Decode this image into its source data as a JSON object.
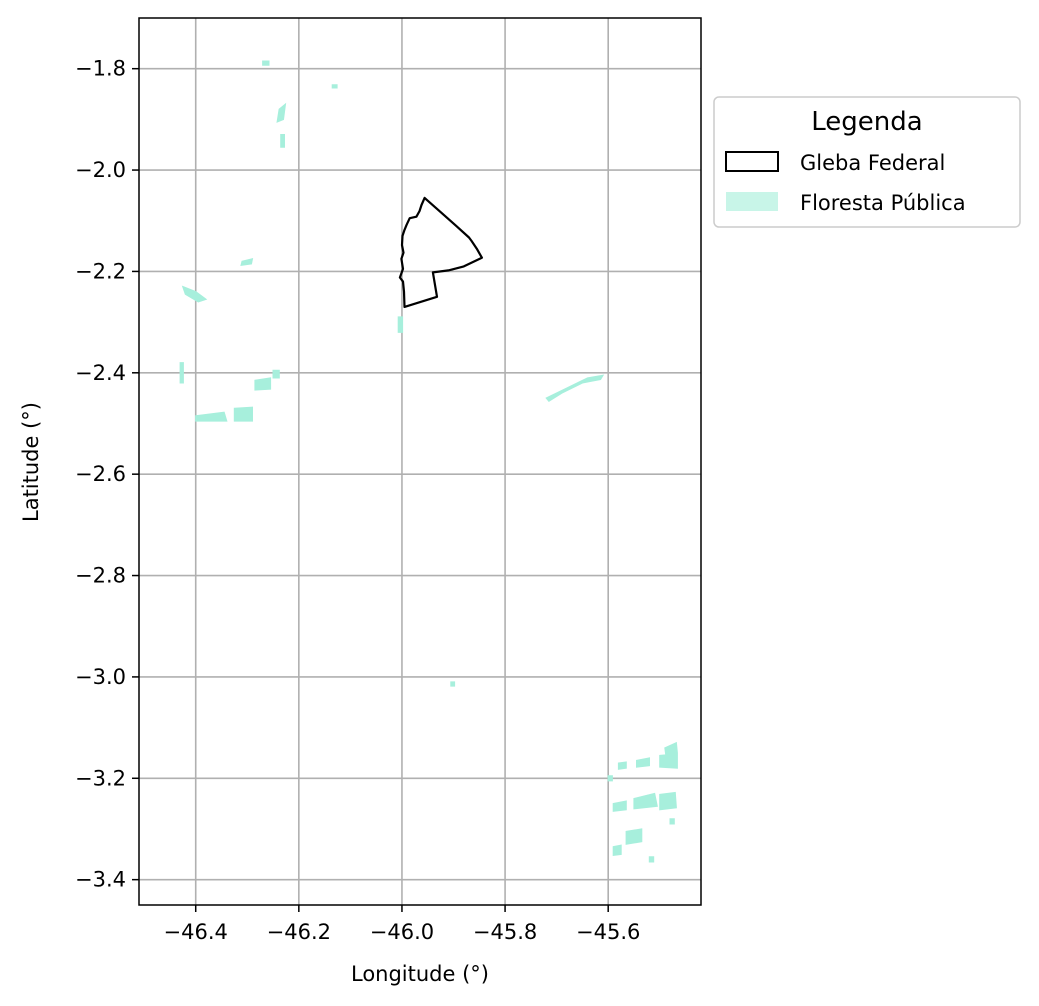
{
  "chart_data": {
    "type": "map",
    "xlabel": "Longitude (°)",
    "ylabel": "Latitude (°)",
    "xlim": [
      -46.51,
      -45.42
    ],
    "ylim": [
      -3.45,
      -1.7
    ],
    "xticks": [
      -46.4,
      -46.2,
      -46.0,
      -45.8,
      -45.6
    ],
    "xtick_labels": [
      "−46.4",
      "−46.2",
      "−46.0",
      "−45.8",
      "−45.6"
    ],
    "yticks": [
      -1.8,
      -2.0,
      -2.2,
      -2.4,
      -2.6,
      -2.8,
      -3.0,
      -3.2,
      -3.4
    ],
    "ytick_labels": [
      "−1.8",
      "−2.0",
      "−2.2",
      "−2.4",
      "−2.6",
      "−2.8",
      "−3.0",
      "−3.2",
      "−3.4"
    ],
    "grid": true,
    "legend": {
      "title": "Legenda",
      "placement": "outside-right-top",
      "entries": [
        {
          "label": "Gleba Federal",
          "style": "outline",
          "color": "#000000"
        },
        {
          "label": "Floresta Pública",
          "style": "fill",
          "color": "#c8f5e8"
        }
      ]
    },
    "gleba_federal": {
      "color": "#000000",
      "polygon": [
        [
          -45.956,
          -2.055
        ],
        [
          -45.925,
          -2.083
        ],
        [
          -45.895,
          -2.11
        ],
        [
          -45.87,
          -2.133
        ],
        [
          -45.865,
          -2.14
        ],
        [
          -45.855,
          -2.155
        ],
        [
          -45.845,
          -2.173
        ],
        [
          -45.88,
          -2.19
        ],
        [
          -45.91,
          -2.198
        ],
        [
          -45.94,
          -2.202
        ],
        [
          -45.932,
          -2.25
        ],
        [
          -45.995,
          -2.27
        ],
        [
          -45.996,
          -2.24
        ],
        [
          -45.998,
          -2.22
        ],
        [
          -46.004,
          -2.212
        ],
        [
          -45.998,
          -2.195
        ],
        [
          -46.001,
          -2.175
        ],
        [
          -45.997,
          -2.163
        ],
        [
          -46.0,
          -2.148
        ],
        [
          -45.999,
          -2.13
        ],
        [
          -45.995,
          -2.118
        ],
        [
          -45.991,
          -2.108
        ],
        [
          -45.985,
          -2.095
        ],
        [
          -45.972,
          -2.092
        ],
        [
          -45.966,
          -2.081
        ],
        [
          -45.962,
          -2.069
        ]
      ]
    },
    "floresta_publica": {
      "color": "#a7efdc",
      "patches": [
        [
          [
            -46.27,
            -1.785
          ],
          [
            -46.258,
            -1.785
          ],
          [
            -46.258,
            -1.793
          ],
          [
            -46.27,
            -1.793
          ]
        ],
        [
          [
            -46.238,
            -1.88
          ],
          [
            -46.226,
            -1.87
          ],
          [
            -46.23,
            -1.9
          ],
          [
            -46.242,
            -1.905
          ]
        ],
        [
          [
            -46.235,
            -1.93
          ],
          [
            -46.228,
            -1.93
          ],
          [
            -46.228,
            -1.955
          ],
          [
            -46.235,
            -1.955
          ]
        ],
        [
          [
            -46.135,
            -1.832
          ],
          [
            -46.126,
            -1.832
          ],
          [
            -46.126,
            -1.838
          ],
          [
            -46.135,
            -1.838
          ]
        ],
        [
          [
            -46.31,
            -2.18
          ],
          [
            -46.29,
            -2.175
          ],
          [
            -46.292,
            -2.185
          ],
          [
            -46.312,
            -2.188
          ]
        ],
        [
          [
            -46.425,
            -2.23
          ],
          [
            -46.4,
            -2.24
          ],
          [
            -46.38,
            -2.255
          ],
          [
            -46.395,
            -2.26
          ],
          [
            -46.42,
            -2.245
          ]
        ],
        [
          [
            -46.43,
            -2.38
          ],
          [
            -46.424,
            -2.38
          ],
          [
            -46.424,
            -2.42
          ],
          [
            -46.43,
            -2.42
          ]
        ],
        [
          [
            -46.4,
            -2.485
          ],
          [
            -46.345,
            -2.478
          ],
          [
            -46.34,
            -2.495
          ],
          [
            -46.4,
            -2.495
          ]
        ],
        [
          [
            -46.325,
            -2.47
          ],
          [
            -46.29,
            -2.468
          ],
          [
            -46.29,
            -2.495
          ],
          [
            -46.325,
            -2.495
          ]
        ],
        [
          [
            -46.285,
            -2.415
          ],
          [
            -46.255,
            -2.41
          ],
          [
            -46.255,
            -2.432
          ],
          [
            -46.285,
            -2.434
          ]
        ],
        [
          [
            -46.25,
            -2.395
          ],
          [
            -46.238,
            -2.395
          ],
          [
            -46.238,
            -2.41
          ],
          [
            -46.25,
            -2.41
          ]
        ],
        [
          [
            -45.72,
            -2.45
          ],
          [
            -45.68,
            -2.43
          ],
          [
            -45.64,
            -2.41
          ],
          [
            -45.61,
            -2.405
          ],
          [
            -45.615,
            -2.413
          ],
          [
            -45.65,
            -2.42
          ],
          [
            -45.69,
            -2.44
          ],
          [
            -45.715,
            -2.456
          ]
        ],
        [
          [
            -46.007,
            -2.29
          ],
          [
            -45.999,
            -2.29
          ],
          [
            -45.999,
            -2.32
          ],
          [
            -46.007,
            -2.32
          ]
        ],
        [
          [
            -45.905,
            -3.01
          ],
          [
            -45.898,
            -3.01
          ],
          [
            -45.898,
            -3.018
          ],
          [
            -45.905,
            -3.018
          ]
        ],
        [
          [
            -45.6,
            -3.195
          ],
          [
            -45.592,
            -3.195
          ],
          [
            -45.592,
            -3.205
          ],
          [
            -45.6,
            -3.205
          ]
        ],
        [
          [
            -45.49,
            -3.14
          ],
          [
            -45.468,
            -3.13
          ],
          [
            -45.466,
            -3.15
          ],
          [
            -45.488,
            -3.155
          ]
        ],
        [
          [
            -45.5,
            -3.155
          ],
          [
            -45.466,
            -3.152
          ],
          [
            -45.466,
            -3.18
          ],
          [
            -45.5,
            -3.178
          ]
        ],
        [
          [
            -45.545,
            -3.165
          ],
          [
            -45.52,
            -3.16
          ],
          [
            -45.52,
            -3.175
          ],
          [
            -45.545,
            -3.178
          ]
        ],
        [
          [
            -45.58,
            -3.17
          ],
          [
            -45.565,
            -3.168
          ],
          [
            -45.565,
            -3.18
          ],
          [
            -45.58,
            -3.182
          ]
        ],
        [
          [
            -45.55,
            -3.24
          ],
          [
            -45.51,
            -3.23
          ],
          [
            -45.505,
            -3.255
          ],
          [
            -45.55,
            -3.26
          ]
        ],
        [
          [
            -45.5,
            -3.232
          ],
          [
            -45.47,
            -3.228
          ],
          [
            -45.468,
            -3.258
          ],
          [
            -45.5,
            -3.262
          ]
        ],
        [
          [
            -45.59,
            -3.25
          ],
          [
            -45.565,
            -3.245
          ],
          [
            -45.565,
            -3.262
          ],
          [
            -45.59,
            -3.265
          ]
        ],
        [
          [
            -45.565,
            -3.305
          ],
          [
            -45.535,
            -3.3
          ],
          [
            -45.535,
            -3.325
          ],
          [
            -45.565,
            -3.33
          ]
        ],
        [
          [
            -45.59,
            -3.335
          ],
          [
            -45.575,
            -3.332
          ],
          [
            -45.575,
            -3.35
          ],
          [
            -45.59,
            -3.352
          ]
        ],
        [
          [
            -45.52,
            -3.355
          ],
          [
            -45.512,
            -3.355
          ],
          [
            -45.512,
            -3.365
          ],
          [
            -45.52,
            -3.365
          ]
        ],
        [
          [
            -45.48,
            -3.28
          ],
          [
            -45.472,
            -3.28
          ],
          [
            -45.472,
            -3.29
          ],
          [
            -45.48,
            -3.29
          ]
        ]
      ]
    }
  }
}
